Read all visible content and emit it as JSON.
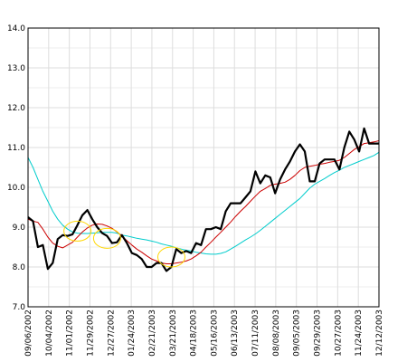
{
  "chart_data": {
    "type": "line",
    "title": "",
    "xlabel": "",
    "ylabel": "",
    "ylim": [
      7.0,
      14.0
    ],
    "yticks": [
      "7.0",
      "8.0",
      "9.0",
      "10.0",
      "11.0",
      "12.0",
      "13.0",
      "14.0"
    ],
    "x_labels": [
      "09/06/2002",
      "10/04/2002",
      "11/01/2002",
      "11/29/2002",
      "12/27/2002",
      "01/24/2003",
      "02/21/2003",
      "03/21/2003",
      "04/18/2003",
      "05/16/2003",
      "06/13/2003",
      "07/11/2003",
      "08/08/2003",
      "09/05/2003",
      "09/29/2003",
      "10/27/2003",
      "11/24/2003",
      "12/12/2003"
    ],
    "grid": true,
    "legend": "none",
    "series": [
      {
        "color": "#000000",
        "values": [
          9.25,
          9.15,
          8.5,
          8.55,
          7.95,
          8.1,
          8.7,
          8.8,
          8.78,
          8.82,
          9.05,
          9.3,
          9.43,
          9.2,
          9.0,
          8.85,
          8.78,
          8.6,
          8.62,
          8.8,
          8.6,
          8.35,
          8.3,
          8.2,
          8.0,
          8.0,
          8.1,
          8.1,
          7.9,
          8.0,
          8.45,
          8.35,
          8.4,
          8.35,
          8.6,
          8.55,
          8.95,
          8.95,
          9.0,
          8.95,
          9.4,
          9.6,
          9.6,
          9.6,
          9.75,
          9.9,
          10.4,
          10.1,
          10.3,
          10.25,
          9.85,
          10.2,
          10.45,
          10.65,
          10.9,
          11.08,
          10.9,
          10.15,
          10.15,
          10.6,
          10.7,
          10.7,
          10.7,
          10.45,
          11.0,
          11.4,
          11.2,
          10.9,
          11.48,
          11.1,
          11.1,
          11.1
        ]
      },
      {
        "color": "#cc0000",
        "values": [
          9.2,
          9.15,
          9.12,
          8.95,
          8.75,
          8.6,
          8.52,
          8.48,
          8.55,
          8.62,
          8.75,
          8.88,
          8.98,
          9.05,
          9.08,
          9.07,
          9.03,
          8.97,
          8.88,
          8.78,
          8.66,
          8.55,
          8.45,
          8.37,
          8.28,
          8.2,
          8.15,
          8.1,
          8.08,
          8.08,
          8.1,
          8.12,
          8.15,
          8.2,
          8.28,
          8.37,
          8.5,
          8.62,
          8.75,
          8.87,
          9.0,
          9.13,
          9.27,
          9.4,
          9.52,
          9.65,
          9.78,
          9.9,
          9.97,
          10.05,
          10.08,
          10.1,
          10.13,
          10.2,
          10.3,
          10.42,
          10.5,
          10.53,
          10.55,
          10.58,
          10.6,
          10.63,
          10.65,
          10.68,
          10.75,
          10.85,
          10.95,
          11.02,
          11.1,
          11.12,
          11.14,
          11.17
        ]
      },
      {
        "color": "#00cccc",
        "values": [
          10.75,
          10.5,
          10.2,
          9.9,
          9.65,
          9.4,
          9.2,
          9.05,
          8.95,
          8.88,
          8.85,
          8.84,
          8.84,
          8.85,
          8.86,
          8.87,
          8.87,
          8.87,
          8.85,
          8.8,
          8.78,
          8.75,
          8.72,
          8.7,
          8.68,
          8.65,
          8.62,
          8.58,
          8.55,
          8.52,
          8.48,
          8.45,
          8.42,
          8.4,
          8.37,
          8.35,
          8.33,
          8.32,
          8.32,
          8.34,
          8.38,
          8.45,
          8.52,
          8.6,
          8.68,
          8.75,
          8.83,
          8.92,
          9.02,
          9.12,
          9.22,
          9.32,
          9.42,
          9.52,
          9.62,
          9.72,
          9.85,
          9.98,
          10.08,
          10.15,
          10.22,
          10.3,
          10.37,
          10.43,
          10.5,
          10.55,
          10.6,
          10.65,
          10.7,
          10.75,
          10.8,
          10.88
        ]
      }
    ],
    "annotations": [
      {
        "shape": "ellipse",
        "color": "#ffd700",
        "cx_index": 10,
        "cy": 8.9
      },
      {
        "shape": "ellipse",
        "color": "#ffd700",
        "cx_index": 16,
        "cy": 8.72
      },
      {
        "shape": "ellipse",
        "color": "#ffd700",
        "cx_index": 29,
        "cy": 8.25
      }
    ]
  }
}
